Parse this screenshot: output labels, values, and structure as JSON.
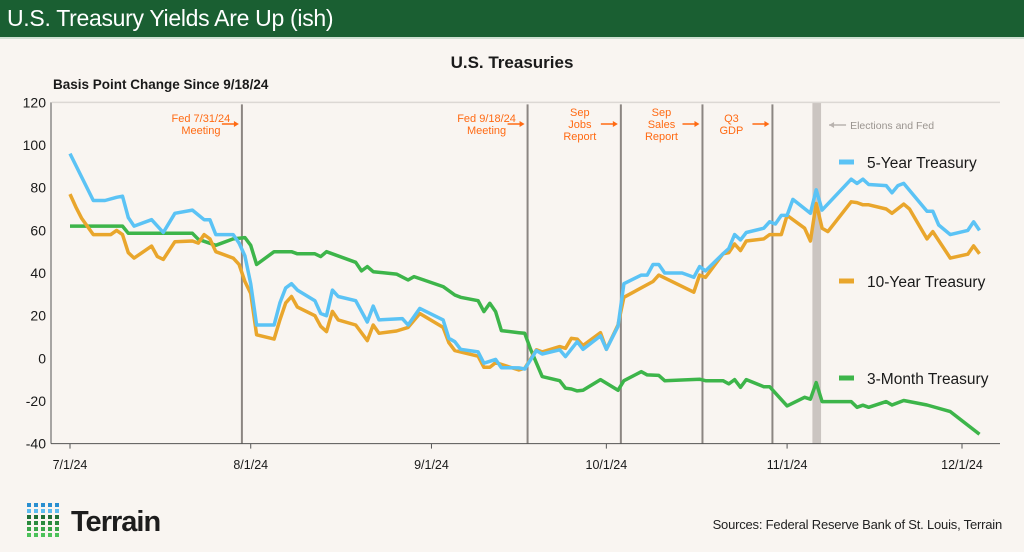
{
  "header": {
    "title": "U.S. Treasury Yields Are Up (ish)"
  },
  "footer": {
    "sources": "Sources: Federal Reserve Bank of St. Louis, Terrain",
    "logo_text": "Terrain"
  },
  "chart_data": {
    "type": "line",
    "title": "U.S. Treasuries",
    "ylabel": "Basis Point Change Since 9/18/24",
    "xlabel": "",
    "ylim": [
      -40,
      120
    ],
    "yticks": [
      "120",
      "100",
      "80",
      "60",
      "40",
      "20",
      "0",
      "-20",
      "-40"
    ],
    "xticks": [
      "7/1/24",
      "8/1/24",
      "9/1/24",
      "10/1/24",
      "11/1/24",
      "12/1/24"
    ],
    "grid": false,
    "legend_placement": "right",
    "colors": {
      "five_year": "#5bc3f5",
      "ten_year": "#e9a62c",
      "three_month": "#3db54a",
      "event": "#ff6a13",
      "event_line": "#8c8682",
      "band": "#cbc5c1"
    },
    "events": [
      {
        "date": "7/31",
        "lines": [
          "Fed 7/31/24",
          "Meeting"
        ]
      },
      {
        "date": "9/18",
        "lines": [
          "Fed 9/18/24",
          "Meeting"
        ]
      },
      {
        "date": "10/4",
        "lines": [
          "Sep",
          "Jobs",
          "Report"
        ]
      },
      {
        "date": "10/18",
        "lines": [
          "Sep",
          "Sales",
          "Report"
        ]
      },
      {
        "date": "10/30",
        "lines": [
          "Q3",
          "GDP"
        ]
      }
    ],
    "band": {
      "from": "11/5",
      "to": "11/7",
      "label": "Elections and Fed"
    },
    "series": [
      {
        "name": "5-Year Treasury",
        "points": [
          [
            "7/1",
            96
          ],
          [
            "7/5",
            74
          ],
          [
            "7/7",
            74
          ],
          [
            "7/9",
            75.5
          ],
          [
            "7/10",
            76
          ],
          [
            "7/11",
            66
          ],
          [
            "7/12",
            62
          ],
          [
            "7/15",
            65
          ],
          [
            "7/17",
            59
          ],
          [
            "7/19",
            68
          ],
          [
            "7/22",
            69.5
          ],
          [
            "7/24",
            65
          ],
          [
            "7/25",
            65
          ],
          [
            "7/26",
            58
          ],
          [
            "7/29",
            58
          ],
          [
            "7/30",
            54
          ],
          [
            "7/31",
            48
          ],
          [
            "8/1",
            35
          ],
          [
            "8/2",
            15.6
          ],
          [
            "8/5",
            15.6
          ],
          [
            "8/6",
            26
          ],
          [
            "8/7",
            33
          ],
          [
            "8/8",
            35
          ],
          [
            "8/9",
            32
          ],
          [
            "8/12",
            27
          ],
          [
            "8/13",
            21
          ],
          [
            "8/14",
            20
          ],
          [
            "8/15",
            32
          ],
          [
            "8/16",
            29
          ],
          [
            "8/19",
            27
          ],
          [
            "8/21",
            17
          ],
          [
            "8/22",
            24.5
          ],
          [
            "8/23",
            18
          ],
          [
            "8/27",
            18.6
          ],
          [
            "8/28",
            15.6
          ],
          [
            "8/30",
            23.4
          ],
          [
            "9/3",
            18
          ],
          [
            "9/4",
            9.4
          ],
          [
            "9/5",
            7.8
          ],
          [
            "9/6",
            4.2
          ],
          [
            "9/9",
            3
          ],
          [
            "9/10",
            -2.3
          ],
          [
            "9/12",
            -0.5
          ],
          [
            "9/13",
            -4.4
          ],
          [
            "9/16",
            -4.5
          ],
          [
            "9/17",
            -5
          ],
          [
            "9/19",
            3.6
          ],
          [
            "9/20",
            2
          ],
          [
            "9/23",
            4
          ],
          [
            "9/24",
            0.8
          ],
          [
            "9/26",
            7.8
          ],
          [
            "9/27",
            4.2
          ],
          [
            "9/30",
            10.5
          ],
          [
            "10/1",
            4.2
          ],
          [
            "10/3",
            15
          ],
          [
            "10/4",
            35
          ],
          [
            "10/7",
            39
          ],
          [
            "10/8",
            39
          ],
          [
            "10/9",
            44
          ],
          [
            "10/10",
            44
          ],
          [
            "10/11",
            40
          ],
          [
            "10/14",
            40
          ],
          [
            "10/15",
            39
          ],
          [
            "10/16",
            38
          ],
          [
            "10/17",
            43
          ],
          [
            "10/18",
            41
          ],
          [
            "10/21",
            49
          ],
          [
            "10/22",
            51.5
          ],
          [
            "10/23",
            58
          ],
          [
            "10/24",
            55.5
          ],
          [
            "10/25",
            59
          ],
          [
            "10/28",
            61
          ],
          [
            "10/29",
            64
          ],
          [
            "10/30",
            63
          ],
          [
            "10/31",
            67
          ],
          [
            "11/1",
            67
          ],
          [
            "11/2",
            74.5
          ],
          [
            "11/5",
            68
          ],
          [
            "11/6",
            79
          ],
          [
            "11/7",
            69.5
          ],
          [
            "11/12",
            84
          ],
          [
            "11/13",
            82
          ],
          [
            "11/14",
            84
          ],
          [
            "11/15",
            81.5
          ],
          [
            "11/18",
            81
          ],
          [
            "11/19",
            77.6
          ],
          [
            "11/20",
            81
          ],
          [
            "11/21",
            82
          ],
          [
            "11/25",
            69
          ],
          [
            "11/26",
            69
          ],
          [
            "11/27",
            62.5
          ],
          [
            "11/29",
            58
          ],
          [
            "12/2",
            60
          ],
          [
            "12/3",
            64
          ],
          [
            "12/4",
            60
          ]
        ]
      },
      {
        "name": "10-Year Treasury",
        "points": [
          [
            "7/1",
            77
          ],
          [
            "7/2",
            71
          ],
          [
            "7/3",
            65.6
          ],
          [
            "7/5",
            58
          ],
          [
            "7/8",
            58
          ],
          [
            "7/9",
            60
          ],
          [
            "7/10",
            58
          ],
          [
            "7/11",
            49.5
          ],
          [
            "7/12",
            47
          ],
          [
            "7/15",
            52.6
          ],
          [
            "7/16",
            47.7
          ],
          [
            "7/17",
            46.4
          ],
          [
            "7/19",
            54.7
          ],
          [
            "7/22",
            55
          ],
          [
            "7/23",
            54
          ],
          [
            "7/24",
            58
          ],
          [
            "7/25",
            56
          ],
          [
            "7/26",
            50
          ],
          [
            "7/29",
            47
          ],
          [
            "7/30",
            44
          ],
          [
            "7/31",
            36
          ],
          [
            "8/1",
            30.5
          ],
          [
            "8/2",
            11
          ],
          [
            "8/5",
            9
          ],
          [
            "8/6",
            18
          ],
          [
            "8/7",
            26
          ],
          [
            "8/8",
            29
          ],
          [
            "8/9",
            24
          ],
          [
            "8/12",
            20
          ],
          [
            "8/13",
            15
          ],
          [
            "8/14",
            12.5
          ],
          [
            "8/15",
            22
          ],
          [
            "8/16",
            18
          ],
          [
            "8/19",
            15.6
          ],
          [
            "8/21",
            8.3
          ],
          [
            "8/22",
            15.6
          ],
          [
            "8/23",
            11.7
          ],
          [
            "8/26",
            12.8
          ],
          [
            "8/28",
            14.5
          ],
          [
            "8/30",
            21
          ],
          [
            "9/3",
            14.5
          ],
          [
            "9/4",
            7.3
          ],
          [
            "9/5",
            3.6
          ],
          [
            "9/9",
            1
          ],
          [
            "9/10",
            -4.2
          ],
          [
            "9/11",
            -4.2
          ],
          [
            "9/12",
            -2
          ],
          [
            "9/16",
            -5.5
          ],
          [
            "9/17",
            -4.7
          ],
          [
            "9/19",
            4
          ],
          [
            "9/20",
            3
          ],
          [
            "9/23",
            5.5
          ],
          [
            "9/24",
            4.7
          ],
          [
            "9/25",
            9.4
          ],
          [
            "9/26",
            9
          ],
          [
            "9/27",
            6
          ],
          [
            "9/30",
            12
          ],
          [
            "10/1",
            4.2
          ],
          [
            "10/3",
            15.6
          ],
          [
            "10/4",
            28.6
          ],
          [
            "10/9",
            36
          ],
          [
            "10/10",
            39
          ],
          [
            "10/16",
            31
          ],
          [
            "10/17",
            39
          ],
          [
            "10/18",
            38
          ],
          [
            "10/21",
            49
          ],
          [
            "10/22",
            49.5
          ],
          [
            "10/23",
            53.6
          ],
          [
            "10/24",
            50.5
          ],
          [
            "10/25",
            55
          ],
          [
            "10/28",
            56
          ],
          [
            "10/29",
            58
          ],
          [
            "10/31",
            58
          ],
          [
            "11/1",
            67
          ],
          [
            "11/4",
            61
          ],
          [
            "11/5",
            55
          ],
          [
            "11/6",
            72.6
          ],
          [
            "11/7",
            61
          ],
          [
            "11/8",
            59.4
          ],
          [
            "11/12",
            73.4
          ],
          [
            "11/13",
            73
          ],
          [
            "11/14",
            72
          ],
          [
            "11/15",
            72
          ],
          [
            "11/18",
            70
          ],
          [
            "11/19",
            68
          ],
          [
            "11/21",
            72.3
          ],
          [
            "11/22",
            70
          ],
          [
            "11/25",
            56
          ],
          [
            "11/26",
            59.4
          ],
          [
            "11/29",
            47
          ],
          [
            "12/2",
            48.8
          ],
          [
            "12/3",
            52.7
          ],
          [
            "12/4",
            49
          ]
        ]
      },
      {
        "name": "3-Month Treasury",
        "points": [
          [
            "7/1",
            62
          ],
          [
            "7/10",
            62
          ],
          [
            "7/11",
            58.6
          ],
          [
            "7/22",
            58.6
          ],
          [
            "7/23",
            55.8
          ],
          [
            "7/26",
            53
          ],
          [
            "7/29",
            56
          ],
          [
            "7/31",
            56.6
          ],
          [
            "8/1",
            53
          ],
          [
            "8/2",
            44
          ],
          [
            "8/5",
            50
          ],
          [
            "8/8",
            50
          ],
          [
            "8/9",
            49
          ],
          [
            "8/12",
            49
          ],
          [
            "8/13",
            47.7
          ],
          [
            "8/14",
            50
          ],
          [
            "8/19",
            45
          ],
          [
            "8/20",
            41
          ],
          [
            "8/21",
            43
          ],
          [
            "8/22",
            40.6
          ],
          [
            "8/26",
            39.5
          ],
          [
            "8/28",
            36.7
          ],
          [
            "8/29",
            38.3
          ],
          [
            "9/3",
            33.6
          ],
          [
            "9/5",
            29.7
          ],
          [
            "9/6",
            28.6
          ],
          [
            "9/9",
            27
          ],
          [
            "9/10",
            21.9
          ],
          [
            "9/11",
            25.8
          ],
          [
            "9/12",
            21.9
          ],
          [
            "9/13",
            13
          ],
          [
            "9/16",
            12
          ],
          [
            "9/17",
            11.7
          ],
          [
            "9/18",
            4.2
          ],
          [
            "9/20",
            -8.6
          ],
          [
            "9/23",
            -10.5
          ],
          [
            "9/24",
            -14
          ],
          [
            "9/25",
            -14.4
          ],
          [
            "9/26",
            -15.3
          ],
          [
            "9/27",
            -15
          ],
          [
            "9/30",
            -10
          ],
          [
            "10/3",
            -15
          ],
          [
            "10/4",
            -10.5
          ],
          [
            "10/7",
            -6.3
          ],
          [
            "10/8",
            -7.8
          ],
          [
            "10/10",
            -8
          ],
          [
            "10/11",
            -10.5
          ],
          [
            "10/17",
            -9.8
          ],
          [
            "10/18",
            -10.5
          ],
          [
            "10/21",
            -10.5
          ],
          [
            "10/22",
            -12
          ],
          [
            "10/23",
            -10
          ],
          [
            "10/24",
            -13.6
          ],
          [
            "10/25",
            -10
          ],
          [
            "10/28",
            -13.3
          ],
          [
            "10/29",
            -13.3
          ],
          [
            "11/1",
            -22.3
          ],
          [
            "11/4",
            -18.3
          ],
          [
            "11/5",
            -19.2
          ],
          [
            "11/6",
            -11.4
          ],
          [
            "11/7",
            -20.3
          ],
          [
            "11/12",
            -20.3
          ],
          [
            "11/13",
            -23
          ],
          [
            "11/14",
            -22
          ],
          [
            "11/15",
            -23
          ],
          [
            "11/18",
            -20.3
          ],
          [
            "11/19",
            -21.9
          ],
          [
            "11/21",
            -19.8
          ],
          [
            "11/25",
            -21.9
          ],
          [
            "11/29",
            -25
          ],
          [
            "12/4",
            -35.6
          ]
        ]
      }
    ]
  }
}
